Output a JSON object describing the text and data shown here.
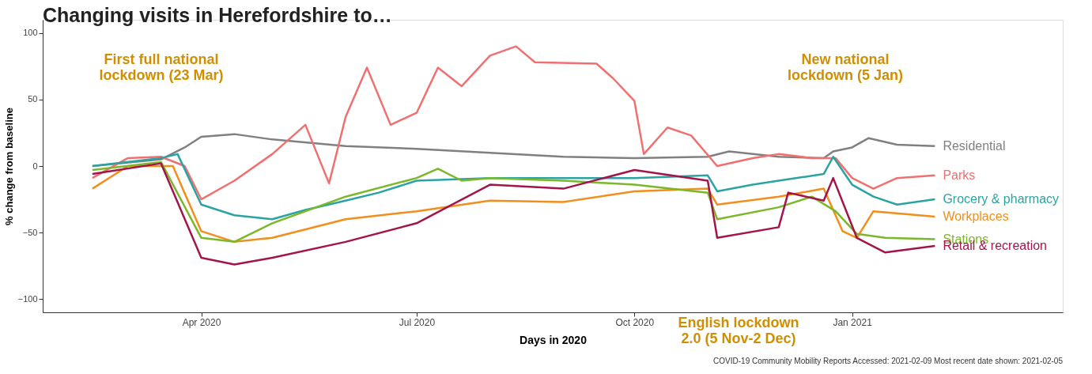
{
  "chart_data": {
    "type": "line",
    "title": "Changing visits in Herefordshire to…",
    "xlabel": "Days in 2020",
    "ylabel": "% change from baseline",
    "xlim": [
      "2020-01-25",
      "2021-03-31"
    ],
    "ylim": [
      -110,
      110
    ],
    "yticks": [
      -100,
      -50,
      0,
      50,
      100
    ],
    "xticks": [
      {
        "value": "2020-04-01",
        "label": "Apr 2020"
      },
      {
        "value": "2020-07-01",
        "label": "Jul 2020"
      },
      {
        "value": "2020-10-01",
        "label": "Oct 2020"
      },
      {
        "value": "2021-01-01",
        "label": "Jan 2021"
      }
    ],
    "grid": false,
    "legend": false,
    "marker": "none",
    "line_style": "solid",
    "series": [
      {
        "name": "Residential",
        "color": "#808080",
        "x": [
          "2020-02-15",
          "2020-03-15",
          "2020-03-25",
          "2020-04-01",
          "2020-04-15",
          "2020-05-01",
          "2020-06-01",
          "2020-07-01",
          "2020-08-01",
          "2020-09-01",
          "2020-10-01",
          "2020-11-01",
          "2020-11-10",
          "2020-12-01",
          "2020-12-20",
          "2020-12-24",
          "2021-01-01",
          "2021-01-08",
          "2021-01-20",
          "2021-02-05"
        ],
        "values": [
          0,
          5,
          14,
          22,
          24,
          20,
          15,
          13,
          10,
          7,
          6,
          7,
          11,
          7,
          6,
          11,
          14,
          21,
          16,
          15
        ]
      },
      {
        "name": "Parks",
        "color": "#f07070",
        "x": [
          "2020-02-15",
          "2020-03-01",
          "2020-03-15",
          "2020-03-25",
          "2020-04-01",
          "2020-04-15",
          "2020-05-01",
          "2020-05-15",
          "2020-05-25",
          "2020-06-01",
          "2020-06-10",
          "2020-06-20",
          "2020-07-01",
          "2020-07-10",
          "2020-07-20",
          "2020-08-01",
          "2020-08-12",
          "2020-08-20",
          "2020-09-15",
          "2020-09-22",
          "2020-10-01",
          "2020-10-05",
          "2020-10-15",
          "2020-10-25",
          "2020-11-05",
          "2020-11-20",
          "2020-12-01",
          "2020-12-15",
          "2020-12-25",
          "2021-01-01",
          "2021-01-10",
          "2021-01-20",
          "2021-02-05"
        ],
        "values": [
          -9,
          6,
          7,
          0,
          -25,
          -11,
          9,
          31,
          -13,
          37,
          74,
          31,
          40,
          74,
          60,
          83,
          90,
          78,
          77,
          66,
          49,
          9,
          29,
          23,
          0,
          6,
          9,
          6,
          6,
          -9,
          -17,
          -9,
          -7
        ]
      },
      {
        "name": "Grocery & pharmacy",
        "color": "#2ba3a3",
        "x": [
          "2020-02-15",
          "2020-03-15",
          "2020-03-22",
          "2020-04-01",
          "2020-04-15",
          "2020-05-01",
          "2020-05-15",
          "2020-06-01",
          "2020-06-15",
          "2020-07-01",
          "2020-08-01",
          "2020-09-01",
          "2020-10-01",
          "2020-11-01",
          "2020-11-05",
          "2020-11-20",
          "2020-12-01",
          "2020-12-20",
          "2020-12-24",
          "2021-01-01",
          "2021-01-10",
          "2021-01-20",
          "2021-02-05"
        ],
        "values": [
          0,
          6,
          9,
          -29,
          -37,
          -40,
          -33,
          -26,
          -20,
          -11,
          -9,
          -9,
          -9,
          -7,
          -19,
          -14,
          -11,
          -6,
          7,
          -14,
          -23,
          -29,
          -25
        ]
      },
      {
        "name": "Workplaces",
        "color": "#f28e1c",
        "x": [
          "2020-02-15",
          "2020-03-01",
          "2020-03-20",
          "2020-04-01",
          "2020-04-15",
          "2020-05-01",
          "2020-06-01",
          "2020-07-01",
          "2020-08-01",
          "2020-09-01",
          "2020-10-01",
          "2020-11-01",
          "2020-11-05",
          "2020-12-01",
          "2020-12-20",
          "2020-12-28",
          "2021-01-03",
          "2021-01-10",
          "2021-02-05"
        ],
        "values": [
          -17,
          0,
          0,
          -49,
          -57,
          -54,
          -40,
          -34,
          -26,
          -27,
          -19,
          -17,
          -29,
          -23,
          -17,
          -49,
          -54,
          -34,
          -38
        ]
      },
      {
        "name": "Stations",
        "color": "#7ab82a",
        "x": [
          "2020-02-15",
          "2020-03-15",
          "2020-04-01",
          "2020-04-15",
          "2020-05-01",
          "2020-06-01",
          "2020-07-01",
          "2020-07-10",
          "2020-07-20",
          "2020-08-01",
          "2020-09-01",
          "2020-10-01",
          "2020-11-01",
          "2020-11-05",
          "2020-12-01",
          "2020-12-15",
          "2020-12-25",
          "2021-01-03",
          "2021-01-15",
          "2021-02-05"
        ],
        "values": [
          -3,
          3,
          -54,
          -57,
          -43,
          -23,
          -9,
          -2,
          -11,
          -9,
          -11,
          -14,
          -20,
          -40,
          -31,
          -23,
          -34,
          -51,
          -54,
          -55
        ]
      },
      {
        "name": "Retail & recreation",
        "color": "#a3154a",
        "x": [
          "2020-02-15",
          "2020-03-15",
          "2020-04-01",
          "2020-04-15",
          "2020-05-01",
          "2020-06-01",
          "2020-07-01",
          "2020-08-01",
          "2020-09-01",
          "2020-10-01",
          "2020-11-01",
          "2020-11-05",
          "2020-12-01",
          "2020-12-05",
          "2020-12-20",
          "2020-12-24",
          "2021-01-03",
          "2021-01-15",
          "2021-02-05"
        ],
        "values": [
          -6,
          2,
          -69,
          -74,
          -69,
          -57,
          -43,
          -14,
          -17,
          -3,
          -11,
          -54,
          -46,
          -20,
          -26,
          -9,
          -54,
          -65,
          -60
        ]
      }
    ],
    "annotations": [
      "First full national\nlockdown (23 Mar)",
      "New national\nlockdown (5 Jan)",
      "English lockdown\n2.0 (5 Nov-2 Dec)",
      "COVID-19 Community Mobility Reports Accessed:  2021-02-09 Most recent date shown: 2021-02-05"
    ]
  }
}
